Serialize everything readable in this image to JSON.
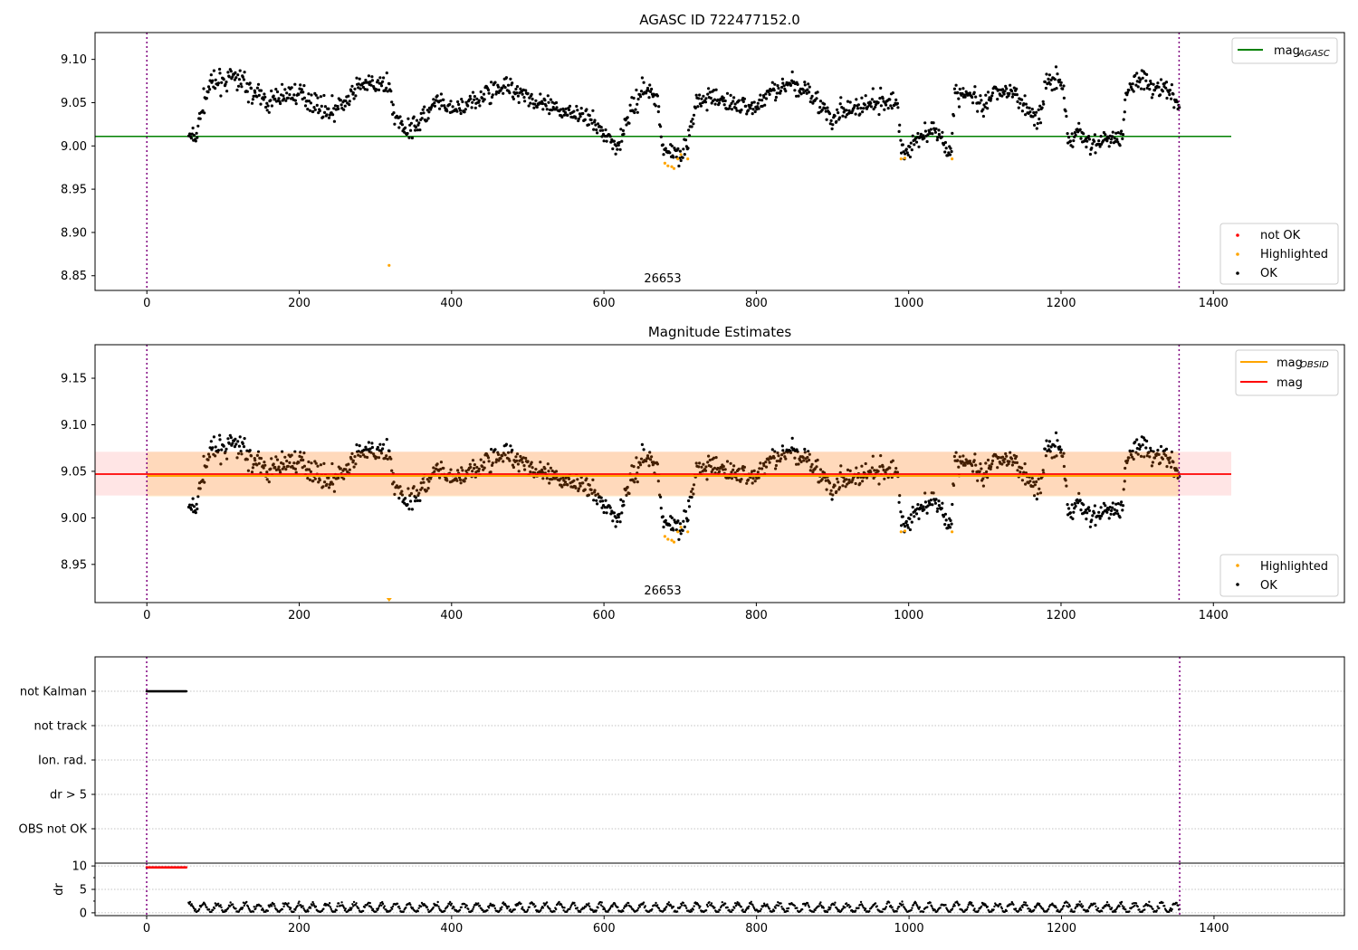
{
  "chart_data": [
    {
      "type": "scatter",
      "title": "AGASC ID 722477152.0",
      "xlim": [
        -68,
        1572
      ],
      "ylim": [
        8.833,
        9.131
      ],
      "xticks": [
        "0",
        "200",
        "400",
        "600",
        "800",
        "1000",
        "1200",
        "1400"
      ],
      "xtick_values": [
        0,
        200,
        400,
        600,
        800,
        1000,
        1200,
        1400
      ],
      "yticks": [
        "8.85",
        "8.90",
        "8.95",
        "9.00",
        "9.05",
        "9.10"
      ],
      "ytick_values": [
        8.85,
        8.9,
        8.95,
        9.0,
        9.05,
        9.1
      ],
      "obsid_label": "26653",
      "obsid_boundaries": [
        0,
        1355
      ],
      "mag_agasc": 9.011,
      "legend_lines": [
        {
          "label": "mag",
          "sub": "AGASC",
          "color": "#008000"
        }
      ],
      "legend_points": [
        {
          "label": "not OK",
          "color": "#ff0000"
        },
        {
          "label": "Highlighted",
          "color": "#ffa500"
        },
        {
          "label": "OK",
          "color": "#000000"
        }
      ]
    },
    {
      "type": "scatter",
      "title": "Magnitude Estimates",
      "xlim": [
        -68,
        1572
      ],
      "ylim": [
        8.909,
        9.186
      ],
      "xticks": [
        "0",
        "200",
        "400",
        "600",
        "800",
        "1000",
        "1200",
        "1400"
      ],
      "xtick_values": [
        0,
        200,
        400,
        600,
        800,
        1000,
        1200,
        1400
      ],
      "yticks": [
        "8.95",
        "9.00",
        "9.05",
        "9.10",
        "9.15"
      ],
      "ytick_values": [
        8.95,
        9.0,
        9.05,
        9.1,
        9.15
      ],
      "obsid_label": "26653",
      "mag": 9.047,
      "mag_band": [
        9.024,
        9.071
      ],
      "mag_obsid": 9.046,
      "mag_obsid_band": [
        9.023,
        9.071
      ],
      "legend_lines": [
        {
          "label": "mag",
          "sub": "OBSID",
          "color": "#ffa500"
        },
        {
          "label": "mag",
          "sub": "",
          "color": "#ff0000"
        }
      ],
      "legend_points": [
        {
          "label": "Highlighted",
          "color": "#ffa500"
        },
        {
          "label": "OK",
          "color": "#000000"
        }
      ]
    },
    {
      "type": "scatter",
      "title": "",
      "flag_categories": [
        "not Kalman",
        "not track",
        "Ion. rad.",
        "dr > 5",
        "OBS not OK"
      ],
      "not_kalman_range": [
        0,
        52
      ],
      "dr_ylabel": "dr",
      "dr_yticks": [
        "0",
        "5",
        "10"
      ],
      "dr_ytick_values": [
        0,
        5,
        10
      ],
      "dr_ylim": [
        -0.6,
        10.6
      ],
      "dr_high_value": 9.7,
      "dr_high_range": [
        0,
        52
      ],
      "dr_low_range": [
        0.2,
        2.4
      ],
      "xticks": [
        "0",
        "200",
        "400",
        "600",
        "800",
        "1000",
        "1200",
        "1400"
      ],
      "xtick_values": [
        0,
        200,
        400,
        600,
        800,
        1000,
        1200,
        1400
      ]
    }
  ],
  "series": {
    "ok_range": [
      55,
      1355
    ],
    "mag_trend": [
      [
        55,
        9.01
      ],
      [
        65,
        9.01
      ],
      [
        72,
        9.045
      ],
      [
        82,
        9.07
      ],
      [
        100,
        9.075
      ],
      [
        120,
        9.08
      ],
      [
        140,
        9.06
      ],
      [
        160,
        9.05
      ],
      [
        180,
        9.06
      ],
      [
        200,
        9.06
      ],
      [
        220,
        9.05
      ],
      [
        240,
        9.04
      ],
      [
        260,
        9.05
      ],
      [
        280,
        9.07
      ],
      [
        300,
        9.07
      ],
      [
        318,
        9.07
      ],
      [
        326,
        9.03
      ],
      [
        340,
        9.02
      ],
      [
        360,
        9.03
      ],
      [
        380,
        9.05
      ],
      [
        400,
        9.04
      ],
      [
        430,
        9.05
      ],
      [
        460,
        9.07
      ],
      [
        490,
        9.065
      ],
      [
        510,
        9.05
      ],
      [
        540,
        9.04
      ],
      [
        560,
        9.04
      ],
      [
        580,
        9.03
      ],
      [
        600,
        9.015
      ],
      [
        618,
        9.0
      ],
      [
        630,
        9.03
      ],
      [
        650,
        9.065
      ],
      [
        670,
        9.06
      ],
      [
        676,
        8.995
      ],
      [
        700,
        8.993
      ],
      [
        710,
        9.0
      ],
      [
        720,
        9.05
      ],
      [
        740,
        9.055
      ],
      [
        760,
        9.05
      ],
      [
        800,
        9.045
      ],
      [
        820,
        9.065
      ],
      [
        840,
        9.07
      ],
      [
        870,
        9.065
      ],
      [
        890,
        9.04
      ],
      [
        900,
        9.025
      ],
      [
        910,
        9.04
      ],
      [
        940,
        9.045
      ],
      [
        970,
        9.05
      ],
      [
        985,
        9.05
      ],
      [
        990,
        9.0
      ],
      [
        1000,
        8.99
      ],
      [
        1010,
        9.01
      ],
      [
        1030,
        9.02
      ],
      [
        1050,
        9.0
      ],
      [
        1056,
        8.995
      ],
      [
        1060,
        9.06
      ],
      [
        1080,
        9.06
      ],
      [
        1100,
        9.04
      ],
      [
        1110,
        9.06
      ],
      [
        1140,
        9.06
      ],
      [
        1160,
        9.04
      ],
      [
        1170,
        9.03
      ],
      [
        1180,
        9.07
      ],
      [
        1195,
        9.08
      ],
      [
        1203,
        9.06
      ],
      [
        1210,
        9.0
      ],
      [
        1220,
        9.02
      ],
      [
        1240,
        9.0
      ],
      [
        1260,
        9.01
      ],
      [
        1280,
        9.01
      ],
      [
        1285,
        9.06
      ],
      [
        1300,
        9.08
      ],
      [
        1320,
        9.07
      ],
      [
        1340,
        9.065
      ],
      [
        1355,
        9.045
      ]
    ],
    "mag_noise": 0.012,
    "highlighted": [
      [
        318,
        8.862
      ],
      [
        680,
        8.98
      ],
      [
        684,
        8.977
      ],
      [
        689,
        8.976
      ],
      [
        692,
        8.974
      ],
      [
        697,
        8.985
      ],
      [
        701,
        8.99
      ],
      [
        710,
        8.985
      ],
      [
        990,
        8.985
      ],
      [
        995,
        8.986
      ],
      [
        1057,
        8.985
      ]
    ]
  },
  "colors": {
    "ok": "#000000",
    "highlighted": "#ffa500",
    "not_ok": "#ff0000",
    "agasc": "#008000",
    "mag": "#ff0000",
    "mag_obsid": "#ffa500",
    "boundary": "#800080",
    "grid": "#b0b0b0"
  }
}
